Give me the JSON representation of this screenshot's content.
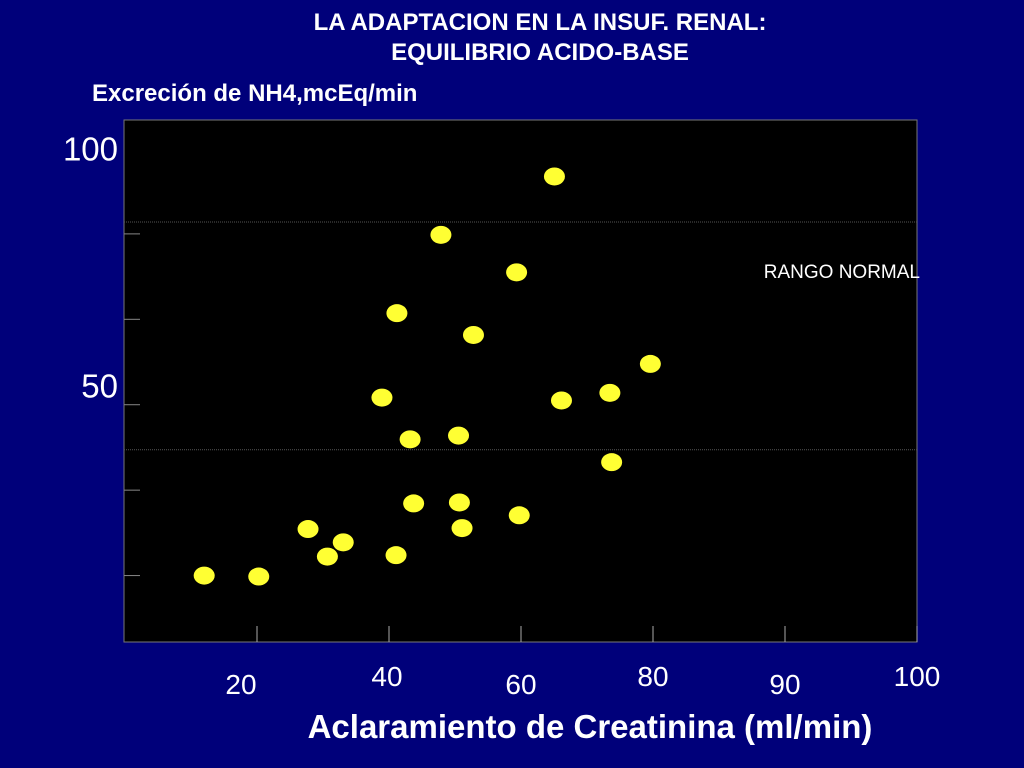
{
  "chart_data": {
    "type": "scatter",
    "title": "LA ADAPTACION EN LA INSUF. RENAL:\nEQUILIBRIO ACIDO-BASE",
    "title_lines": [
      "LA ADAPTACION EN LA INSUF. RENAL:",
      "EQUILIBRIO ACIDO-BASE"
    ],
    "ylabel": "Excreción de NH4,mcEq/min",
    "xlabel": "Aclaramiento de Creatinina (ml/min)",
    "ylim": [
      -4,
      106
    ],
    "xlim": [
      0,
      90
    ],
    "yticks": [
      {
        "value": 100,
        "label": "100"
      },
      {
        "value": 50,
        "label": "50"
      }
    ],
    "xticks": [
      {
        "value": 15,
        "label": "20"
      },
      {
        "value": 30,
        "label": "40"
      },
      {
        "value": 45,
        "label": "60"
      },
      {
        "value": 60,
        "label": "80"
      },
      {
        "value": 75,
        "label": "90"
      },
      {
        "value": 90,
        "label": "100"
      }
    ],
    "annotation": "RANGO NORMAL",
    "grid_y": [
      84.5,
      36.5
    ],
    "minor_yticks": [
      82,
      64,
      46,
      28,
      10
    ],
    "colors": {
      "background": "#00007a",
      "plot_bg": "#000000",
      "marker": "#ffff33",
      "grid": "#555555"
    },
    "points": [
      {
        "x": 9.0,
        "y": 10.0
      },
      {
        "x": 15.2,
        "y": 9.8
      },
      {
        "x": 20.8,
        "y": 19.8
      },
      {
        "x": 23.0,
        "y": 14.0
      },
      {
        "x": 24.8,
        "y": 17.0
      },
      {
        "x": 30.8,
        "y": 14.3
      },
      {
        "x": 29.2,
        "y": 47.5
      },
      {
        "x": 30.9,
        "y": 65.3
      },
      {
        "x": 32.4,
        "y": 38.7
      },
      {
        "x": 32.8,
        "y": 25.2
      },
      {
        "x": 35.9,
        "y": 81.8
      },
      {
        "x": 37.9,
        "y": 39.5
      },
      {
        "x": 38.0,
        "y": 25.4
      },
      {
        "x": 38.3,
        "y": 20.0
      },
      {
        "x": 39.6,
        "y": 60.7
      },
      {
        "x": 44.5,
        "y": 73.9
      },
      {
        "x": 44.8,
        "y": 22.7
      },
      {
        "x": 48.8,
        "y": 94.1
      },
      {
        "x": 49.6,
        "y": 46.9
      },
      {
        "x": 55.1,
        "y": 48.5
      },
      {
        "x": 55.3,
        "y": 33.9
      },
      {
        "x": 59.7,
        "y": 54.6
      }
    ]
  }
}
